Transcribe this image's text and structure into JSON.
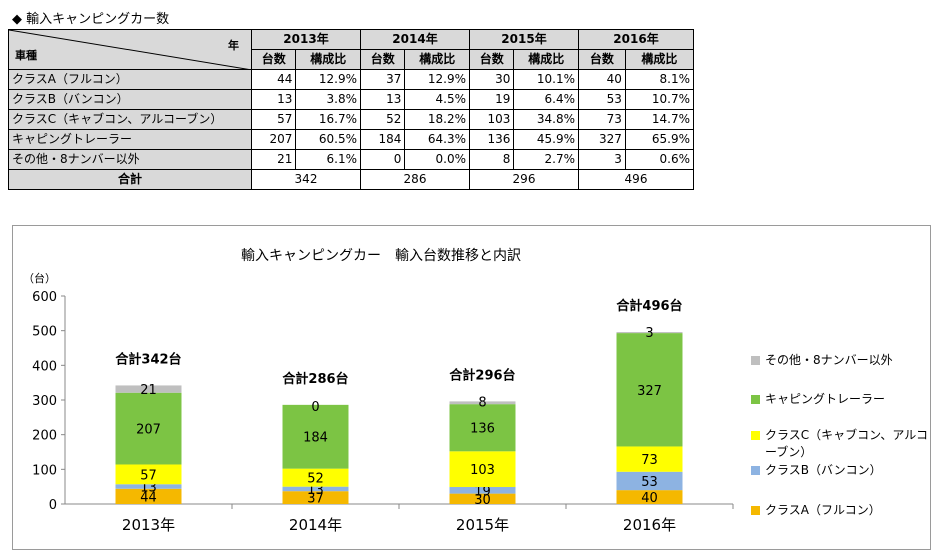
{
  "page": {
    "title": "◆ 輸入キャンピングカー数"
  },
  "table": {
    "corner_year": "年",
    "corner_type": "車種",
    "years": [
      "2013年",
      "2014年",
      "2015年",
      "2016年"
    ],
    "sub_headers": [
      "台数",
      "構成比"
    ],
    "rows": [
      {
        "label": "クラスA（フルコン）",
        "cells": [
          "44",
          "12.9%",
          "37",
          "12.9%",
          "30",
          "10.1%",
          "40",
          "8.1%"
        ]
      },
      {
        "label": "クラスB（バンコン）",
        "cells": [
          "13",
          "3.8%",
          "13",
          "4.5%",
          "19",
          "6.4%",
          "53",
          "10.7%"
        ]
      },
      {
        "label": "クラスC（キャブコン、アルコーブン）",
        "cells": [
          "57",
          "16.7%",
          "52",
          "18.2%",
          "103",
          "34.8%",
          "73",
          "14.7%"
        ]
      },
      {
        "label": "キャピングトレーラー",
        "cells": [
          "207",
          "60.5%",
          "184",
          "64.3%",
          "136",
          "45.9%",
          "327",
          "65.9%"
        ]
      },
      {
        "label": "その他・8ナンバー以外",
        "cells": [
          "21",
          "6.1%",
          "0",
          "0.0%",
          "8",
          "2.7%",
          "3",
          "0.6%"
        ]
      }
    ],
    "total_label": "合計",
    "totals": [
      "342",
      "286",
      "296",
      "496"
    ]
  },
  "chart_data": {
    "type": "bar",
    "stacked": true,
    "title": "輸入キャンピングカー　輸入台数推移と内訳",
    "ylabel": "（台）",
    "ylim": [
      0,
      600
    ],
    "yticks": [
      0,
      100,
      200,
      300,
      400,
      500,
      600
    ],
    "categories": [
      "2013年",
      "2014年",
      "2015年",
      "2016年"
    ],
    "total_labels": [
      "合計342台",
      "合計286台",
      "合計296台",
      "合計496台"
    ],
    "legend_position": "right",
    "series": [
      {
        "name": "クラスA（フルコン）",
        "color": "#f5b800",
        "values": [
          44,
          37,
          30,
          40
        ]
      },
      {
        "name": "クラスB（バンコン）",
        "color": "#8db3e2",
        "values": [
          13,
          13,
          19,
          53
        ]
      },
      {
        "name": "クラスC（キャブコン、アルコーブン）",
        "color": "#ffff00",
        "values": [
          57,
          52,
          103,
          73
        ]
      },
      {
        "name": "キャピングトレーラー",
        "color": "#7cc444",
        "values": [
          207,
          184,
          136,
          327
        ]
      },
      {
        "name": "その他・8ナンバー以外",
        "color": "#bfbfbf",
        "values": [
          21,
          0,
          8,
          3
        ]
      }
    ]
  }
}
